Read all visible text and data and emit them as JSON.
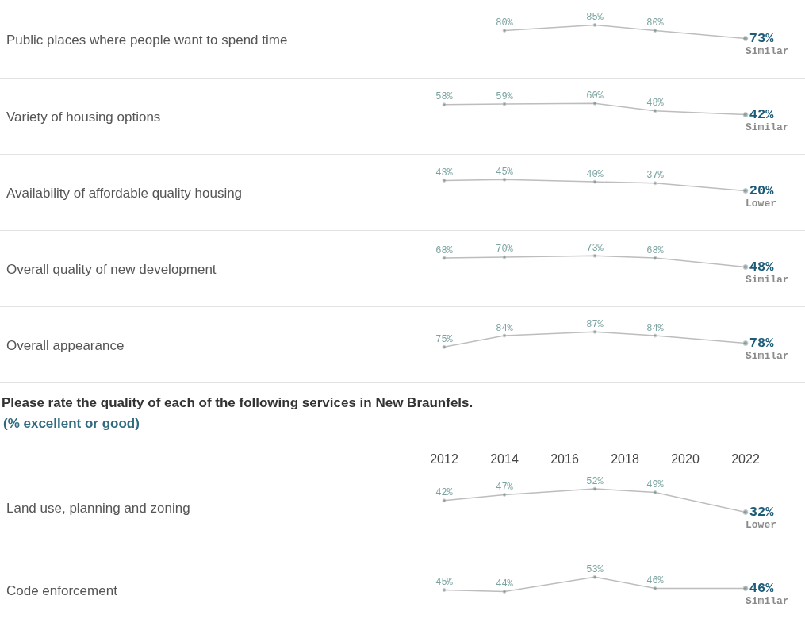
{
  "chart_data": [
    {
      "type": "line",
      "ylabel": "Public places where people want to spend time",
      "x": [
        2014,
        2017,
        2019,
        2022
      ],
      "values": [
        80,
        85,
        80,
        73
      ],
      "value_labels": [
        "80%",
        "85%",
        "80%",
        "73%"
      ],
      "color": "#bdbdbd",
      "marker": "circle",
      "xlim": [
        2012,
        2022
      ],
      "tick_labels": false,
      "annotations": [
        "Similar"
      ]
    },
    {
      "type": "line",
      "ylabel": "Variety of housing options",
      "x": [
        2012,
        2014,
        2017,
        2019,
        2022
      ],
      "values": [
        58,
        59,
        60,
        48,
        42
      ],
      "value_labels": [
        "58%",
        "59%",
        "60%",
        "48%",
        "42%"
      ],
      "color": "#bdbdbd",
      "marker": "circle",
      "xlim": [
        2012,
        2022
      ],
      "tick_labels": false,
      "annotations": [
        "Similar"
      ]
    },
    {
      "type": "line",
      "ylabel": "Availability of affordable quality housing",
      "x": [
        2012,
        2014,
        2017,
        2019,
        2022
      ],
      "values": [
        43,
        45,
        40,
        37,
        20
      ],
      "value_labels": [
        "43%",
        "45%",
        "40%",
        "37%",
        "20%"
      ],
      "color": "#bdbdbd",
      "marker": "circle",
      "xlim": [
        2012,
        2022
      ],
      "tick_labels": false,
      "annotations": [
        "Lower"
      ]
    },
    {
      "type": "line",
      "ylabel": "Overall quality of new development",
      "x": [
        2012,
        2014,
        2017,
        2019,
        2022
      ],
      "values": [
        68,
        70,
        73,
        68,
        48
      ],
      "value_labels": [
        "68%",
        "70%",
        "73%",
        "68%",
        "48%"
      ],
      "color": "#bdbdbd",
      "marker": "circle",
      "xlim": [
        2012,
        2022
      ],
      "tick_labels": false,
      "annotations": [
        "Similar"
      ]
    },
    {
      "type": "line",
      "ylabel": "Overall appearance",
      "x": [
        2012,
        2014,
        2017,
        2019,
        2022
      ],
      "values": [
        75,
        84,
        87,
        84,
        78
      ],
      "value_labels": [
        "75%",
        "84%",
        "87%",
        "84%",
        "78%"
      ],
      "color": "#bdbdbd",
      "marker": "circle",
      "xlim": [
        2012,
        2022
      ],
      "tick_labels": false,
      "annotations": [
        "Similar"
      ]
    },
    {
      "type": "other",
      "title": "Please rate the quality of each of the following services in New Braunfels.",
      "subtitle": "(% excellent or good)"
    },
    {
      "type": "line",
      "ylabel": "Land use, planning and zoning",
      "x": [
        2012,
        2014,
        2017,
        2019,
        2022
      ],
      "values": [
        42,
        47,
        52,
        49,
        32
      ],
      "value_labels": [
        "42%",
        "47%",
        "52%",
        "49%",
        "32%"
      ],
      "color": "#bdbdbd",
      "marker": "circle",
      "xlim": [
        2012,
        2022
      ],
      "xticks": [
        2012,
        2014,
        2016,
        2018,
        2020,
        2022
      ],
      "tick_labels": "x",
      "annotations": [
        "Lower"
      ]
    },
    {
      "type": "line",
      "ylabel": "Code enforcement",
      "x": [
        2012,
        2014,
        2017,
        2019,
        2022
      ],
      "values": [
        45,
        44,
        53,
        46,
        46
      ],
      "value_labels": [
        "45%",
        "44%",
        "53%",
        "46%",
        "46%"
      ],
      "color": "#bdbdbd",
      "marker": "circle",
      "xlim": [
        2012,
        2022
      ],
      "tick_labels": false,
      "annotations": [
        "Similar"
      ]
    }
  ]
}
